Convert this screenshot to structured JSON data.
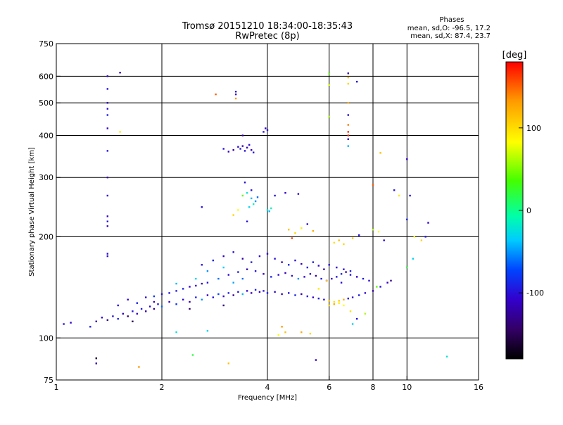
{
  "chart_data": {
    "type": "scatter",
    "title": "Tromsø 20151210 18:34:00-18:35:43",
    "subtitle": "RwPretec (8p)",
    "stats": {
      "heading": "Phases",
      "line_o": "mean, sd,O: -96.5, 17.2",
      "line_x": "mean, sd,X: 87.4, 23.7"
    },
    "xlabel": "Frequency [MHz]",
    "ylabel": "Stationary phase Virtual Height [km]",
    "x_scale": "log",
    "y_scale": "log",
    "xlim": [
      1,
      16
    ],
    "ylim": [
      75,
      750
    ],
    "x_ticks": [
      1,
      2,
      4,
      6,
      8,
      10,
      16
    ],
    "x_tick_labels": [
      "1",
      "2",
      "4",
      "6",
      "8",
      "10",
      "16"
    ],
    "y_ticks": [
      75,
      100,
      200,
      300,
      400,
      500,
      600,
      750
    ],
    "y_tick_labels": [
      "75",
      "100",
      "200",
      "300",
      "400",
      "500",
      "600",
      "750"
    ],
    "grid_x": [
      2,
      4,
      6,
      8,
      10
    ],
    "grid_y": [
      100,
      200,
      300,
      400,
      500,
      600
    ],
    "grid": true,
    "colorbar": {
      "label": "[deg]",
      "range": [
        -180,
        180
      ],
      "ticks": [
        100,
        0,
        -100
      ],
      "tick_labels": [
        "100",
        "0",
        "-100"
      ]
    },
    "points": [
      {
        "f": 1.05,
        "h": 110,
        "p": -100
      },
      {
        "f": 1.1,
        "h": 111,
        "p": -110
      },
      {
        "f": 1.25,
        "h": 108,
        "p": -95
      },
      {
        "f": 1.3,
        "h": 112,
        "p": -120
      },
      {
        "f": 1.35,
        "h": 115,
        "p": -105
      },
      {
        "f": 1.4,
        "h": 113,
        "p": -130
      },
      {
        "f": 1.45,
        "h": 116,
        "p": -100
      },
      {
        "f": 1.5,
        "h": 114,
        "p": -90
      },
      {
        "f": 1.55,
        "h": 118,
        "p": -115
      },
      {
        "f": 1.6,
        "h": 116,
        "p": -140
      },
      {
        "f": 1.65,
        "h": 120,
        "p": -100
      },
      {
        "f": 1.7,
        "h": 118,
        "p": -110
      },
      {
        "f": 1.75,
        "h": 122,
        "p": -95
      },
      {
        "f": 1.8,
        "h": 120,
        "p": -120
      },
      {
        "f": 1.85,
        "h": 124,
        "p": -105
      },
      {
        "f": 1.9,
        "h": 122,
        "p": -130
      },
      {
        "f": 1.95,
        "h": 126,
        "p": -100
      },
      {
        "f": 2.0,
        "h": 124,
        "p": -60
      },
      {
        "f": 2.1,
        "h": 128,
        "p": -110
      },
      {
        "f": 2.2,
        "h": 126,
        "p": -80
      },
      {
        "f": 2.3,
        "h": 130,
        "p": -105
      },
      {
        "f": 2.4,
        "h": 128,
        "p": -120
      },
      {
        "f": 2.5,
        "h": 132,
        "p": -90
      },
      {
        "f": 2.6,
        "h": 130,
        "p": -50
      },
      {
        "f": 2.7,
        "h": 134,
        "p": -115
      },
      {
        "f": 2.8,
        "h": 132,
        "p": -100
      },
      {
        "f": 2.9,
        "h": 135,
        "p": -70
      },
      {
        "f": 3.0,
        "h": 133,
        "p": -110
      },
      {
        "f": 3.1,
        "h": 136,
        "p": -95
      },
      {
        "f": 3.2,
        "h": 134,
        "p": -130
      },
      {
        "f": 3.3,
        "h": 137,
        "p": -100
      },
      {
        "f": 3.4,
        "h": 135,
        "p": -40
      },
      {
        "f": 3.5,
        "h": 138,
        "p": -105
      },
      {
        "f": 3.6,
        "h": 136,
        "p": -120
      },
      {
        "f": 3.7,
        "h": 139,
        "p": -90
      },
      {
        "f": 3.8,
        "h": 137,
        "p": -110
      },
      {
        "f": 3.9,
        "h": 138,
        "p": -100
      },
      {
        "f": 4.0,
        "h": 136,
        "p": -95
      },
      {
        "f": 4.2,
        "h": 137,
        "p": -105
      },
      {
        "f": 4.4,
        "h": 135,
        "p": -115
      },
      {
        "f": 4.6,
        "h": 136,
        "p": -100
      },
      {
        "f": 4.8,
        "h": 134,
        "p": -90
      },
      {
        "f": 5.0,
        "h": 135,
        "p": -120
      },
      {
        "f": 5.2,
        "h": 133,
        "p": -100
      },
      {
        "f": 5.4,
        "h": 132,
        "p": -110
      },
      {
        "f": 5.6,
        "h": 131,
        "p": -95
      },
      {
        "f": 5.8,
        "h": 130,
        "p": -105
      },
      {
        "f": 6.0,
        "h": 129,
        "p": 110
      },
      {
        "f": 6.2,
        "h": 128,
        "p": 95
      },
      {
        "f": 6.4,
        "h": 129,
        "p": 105
      },
      {
        "f": 6.6,
        "h": 130,
        "p": 120
      },
      {
        "f": 6.8,
        "h": 131,
        "p": -100
      },
      {
        "f": 7.0,
        "h": 132,
        "p": -110
      },
      {
        "f": 7.3,
        "h": 134,
        "p": -95
      },
      {
        "f": 7.6,
        "h": 136,
        "p": -105
      },
      {
        "f": 8.0,
        "h": 138,
        "p": -120
      },
      {
        "f": 8.4,
        "h": 142,
        "p": -100
      },
      {
        "f": 8.8,
        "h": 146,
        "p": -110
      },
      {
        "f": 9.0,
        "h": 148,
        "p": -130
      },
      {
        "f": 1.9,
        "h": 133,
        "p": -80
      },
      {
        "f": 2.1,
        "h": 136,
        "p": -100
      },
      {
        "f": 2.3,
        "h": 140,
        "p": -90
      },
      {
        "f": 2.5,
        "h": 143,
        "p": -110
      },
      {
        "f": 2.7,
        "h": 146,
        "p": -100
      },
      {
        "f": 2.9,
        "h": 150,
        "p": -60
      },
      {
        "f": 3.1,
        "h": 154,
        "p": -105
      },
      {
        "f": 3.3,
        "h": 157,
        "p": -95
      },
      {
        "f": 3.5,
        "h": 160,
        "p": -120
      },
      {
        "f": 3.7,
        "h": 158,
        "p": -100
      },
      {
        "f": 3.9,
        "h": 155,
        "p": -110
      },
      {
        "f": 4.1,
        "h": 152,
        "p": -90
      },
      {
        "f": 4.3,
        "h": 154,
        "p": -105
      },
      {
        "f": 4.5,
        "h": 156,
        "p": -115
      },
      {
        "f": 4.7,
        "h": 153,
        "p": -100
      },
      {
        "f": 4.9,
        "h": 150,
        "p": -50
      },
      {
        "f": 5.1,
        "h": 152,
        "p": -110
      },
      {
        "f": 5.3,
        "h": 155,
        "p": -100
      },
      {
        "f": 5.5,
        "h": 153,
        "p": -120
      },
      {
        "f": 5.7,
        "h": 150,
        "p": -95
      },
      {
        "f": 5.9,
        "h": 148,
        "p": -105
      },
      {
        "f": 6.1,
        "h": 150,
        "p": -110
      },
      {
        "f": 6.3,
        "h": 152,
        "p": -100
      },
      {
        "f": 6.5,
        "h": 155,
        "p": -90
      },
      {
        "f": 6.7,
        "h": 157,
        "p": -115
      },
      {
        "f": 6.9,
        "h": 154,
        "p": -100
      },
      {
        "f": 7.2,
        "h": 152,
        "p": -110
      },
      {
        "f": 7.5,
        "h": 150,
        "p": -95
      },
      {
        "f": 7.8,
        "h": 148,
        "p": -105
      },
      {
        "f": 2.6,
        "h": 165,
        "p": -100
      },
      {
        "f": 2.8,
        "h": 170,
        "p": -90
      },
      {
        "f": 3.0,
        "h": 175,
        "p": -110
      },
      {
        "f": 3.2,
        "h": 180,
        "p": -100
      },
      {
        "f": 3.4,
        "h": 172,
        "p": -120
      },
      {
        "f": 3.6,
        "h": 168,
        "p": -95
      },
      {
        "f": 3.8,
        "h": 175,
        "p": -105
      },
      {
        "f": 4.0,
        "h": 178,
        "p": -110
      },
      {
        "f": 4.2,
        "h": 172,
        "p": -100
      },
      {
        "f": 4.4,
        "h": 168,
        "p": -115
      },
      {
        "f": 4.6,
        "h": 165,
        "p": -90
      },
      {
        "f": 4.8,
        "h": 170,
        "p": -100
      },
      {
        "f": 5.0,
        "h": 166,
        "p": -110
      },
      {
        "f": 5.2,
        "h": 162,
        "p": -100
      },
      {
        "f": 5.4,
        "h": 168,
        "p": -95
      },
      {
        "f": 5.6,
        "h": 164,
        "p": -105
      },
      {
        "f": 5.8,
        "h": 160,
        "p": -120
      },
      {
        "f": 6.0,
        "h": 165,
        "p": -100
      },
      {
        "f": 6.3,
        "h": 162,
        "p": -110
      },
      {
        "f": 6.6,
        "h": 160,
        "p": -100
      },
      {
        "f": 6.9,
        "h": 158,
        "p": -95
      },
      {
        "f": 1.5,
        "h": 125,
        "p": -100
      },
      {
        "f": 1.6,
        "h": 130,
        "p": -110
      },
      {
        "f": 1.7,
        "h": 127,
        "p": -90
      },
      {
        "f": 1.8,
        "h": 132,
        "p": -105
      },
      {
        "f": 1.9,
        "h": 128,
        "p": -115
      },
      {
        "f": 2.0,
        "h": 135,
        "p": -100
      },
      {
        "f": 2.2,
        "h": 138,
        "p": -95
      },
      {
        "f": 2.4,
        "h": 142,
        "p": -110
      },
      {
        "f": 2.6,
        "h": 145,
        "p": -120
      },
      {
        "f": 2.2,
        "h": 145,
        "p": -40
      },
      {
        "f": 2.5,
        "h": 150,
        "p": -30
      },
      {
        "f": 2.7,
        "h": 158,
        "p": -50
      },
      {
        "f": 3.0,
        "h": 162,
        "p": -35
      },
      {
        "f": 3.2,
        "h": 146,
        "p": -45
      },
      {
        "f": 3.4,
        "h": 150,
        "p": -60
      },
      {
        "f": 1.4,
        "h": 600,
        "p": -110
      },
      {
        "f": 1.4,
        "h": 550,
        "p": -100
      },
      {
        "f": 1.4,
        "h": 500,
        "p": -120
      },
      {
        "f": 1.4,
        "h": 480,
        "p": -105
      },
      {
        "f": 1.4,
        "h": 460,
        "p": -95
      },
      {
        "f": 1.4,
        "h": 420,
        "p": -110
      },
      {
        "f": 1.4,
        "h": 360,
        "p": -100
      },
      {
        "f": 1.4,
        "h": 300,
        "p": -120
      },
      {
        "f": 1.4,
        "h": 265,
        "p": -105
      },
      {
        "f": 1.4,
        "h": 230,
        "p": -110
      },
      {
        "f": 1.4,
        "h": 222,
        "p": -100
      },
      {
        "f": 1.4,
        "h": 215,
        "p": -115
      },
      {
        "f": 1.4,
        "h": 178,
        "p": -100
      },
      {
        "f": 1.4,
        "h": 175,
        "p": -110
      },
      {
        "f": 1.52,
        "h": 615,
        "p": -120
      },
      {
        "f": 1.52,
        "h": 410,
        "p": 90
      },
      {
        "f": 2.85,
        "h": 530,
        "p": 150
      },
      {
        "f": 3.25,
        "h": 540,
        "p": -100
      },
      {
        "f": 3.25,
        "h": 530,
        "p": -110
      },
      {
        "f": 3.25,
        "h": 515,
        "p": 130
      },
      {
        "f": 3.0,
        "h": 365,
        "p": -100
      },
      {
        "f": 3.1,
        "h": 358,
        "p": -110
      },
      {
        "f": 3.2,
        "h": 362,
        "p": -120
      },
      {
        "f": 3.3,
        "h": 370,
        "p": -105
      },
      {
        "f": 3.35,
        "h": 365,
        "p": -95
      },
      {
        "f": 3.4,
        "h": 372,
        "p": -110
      },
      {
        "f": 3.45,
        "h": 360,
        "p": -100
      },
      {
        "f": 3.5,
        "h": 368,
        "p": -120
      },
      {
        "f": 3.55,
        "h": 375,
        "p": -105
      },
      {
        "f": 3.6,
        "h": 362,
        "p": -110
      },
      {
        "f": 3.65,
        "h": 356,
        "p": -100
      },
      {
        "f": 3.4,
        "h": 400,
        "p": -120
      },
      {
        "f": 3.9,
        "h": 410,
        "p": -100
      },
      {
        "f": 3.95,
        "h": 420,
        "p": -110
      },
      {
        "f": 4.0,
        "h": 415,
        "p": -105
      },
      {
        "f": 3.45,
        "h": 290,
        "p": -100
      },
      {
        "f": 3.5,
        "h": 270,
        "p": -20
      },
      {
        "f": 3.6,
        "h": 260,
        "p": -40
      },
      {
        "f": 3.65,
        "h": 250,
        "p": -10
      },
      {
        "f": 3.7,
        "h": 255,
        "p": -50
      },
      {
        "f": 3.55,
        "h": 245,
        "p": -30
      },
      {
        "f": 3.6,
        "h": 275,
        "p": -100
      },
      {
        "f": 3.4,
        "h": 265,
        "p": 40
      },
      {
        "f": 3.75,
        "h": 262,
        "p": -60
      },
      {
        "f": 3.3,
        "h": 240,
        "p": 80
      },
      {
        "f": 3.2,
        "h": 232,
        "p": 100
      },
      {
        "f": 3.5,
        "h": 222,
        "p": -100
      },
      {
        "f": 4.0,
        "h": 240,
        "p": -20
      },
      {
        "f": 4.05,
        "h": 238,
        "p": -40
      },
      {
        "f": 4.1,
        "h": 243,
        "p": -10
      },
      {
        "f": 4.2,
        "h": 265,
        "p": -100
      },
      {
        "f": 4.5,
        "h": 270,
        "p": -110
      },
      {
        "f": 4.9,
        "h": 268,
        "p": -105
      },
      {
        "f": 4.6,
        "h": 210,
        "p": 110
      },
      {
        "f": 4.8,
        "h": 205,
        "p": 100
      },
      {
        "f": 5.0,
        "h": 212,
        "p": 90
      },
      {
        "f": 4.7,
        "h": 198,
        "p": 160
      },
      {
        "f": 5.2,
        "h": 218,
        "p": -100
      },
      {
        "f": 5.4,
        "h": 208,
        "p": 120
      },
      {
        "f": 6.0,
        "h": 610,
        "p": 40
      },
      {
        "f": 6.0,
        "h": 565,
        "p": 70
      },
      {
        "f": 6.0,
        "h": 455,
        "p": 60
      },
      {
        "f": 6.8,
        "h": 612,
        "p": -120
      },
      {
        "f": 6.8,
        "h": 595,
        "p": 110
      },
      {
        "f": 6.8,
        "h": 570,
        "p": 100
      },
      {
        "f": 6.8,
        "h": 500,
        "p": 120
      },
      {
        "f": 6.8,
        "h": 460,
        "p": -100
      },
      {
        "f": 6.8,
        "h": 430,
        "p": 140
      },
      {
        "f": 6.8,
        "h": 410,
        "p": 165
      },
      {
        "f": 6.8,
        "h": 400,
        "p": 170
      },
      {
        "f": 6.8,
        "h": 390,
        "p": -110
      },
      {
        "f": 6.8,
        "h": 372,
        "p": -40
      },
      {
        "f": 7.2,
        "h": 578,
        "p": -100
      },
      {
        "f": 6.2,
        "h": 192,
        "p": 95
      },
      {
        "f": 6.4,
        "h": 195,
        "p": 110
      },
      {
        "f": 6.6,
        "h": 190,
        "p": 100
      },
      {
        "f": 7.0,
        "h": 198,
        "p": 105
      },
      {
        "f": 7.3,
        "h": 202,
        "p": -100
      },
      {
        "f": 8.0,
        "h": 210,
        "p": 60
      },
      {
        "f": 8.3,
        "h": 207,
        "p": 80
      },
      {
        "f": 8.6,
        "h": 195,
        "p": -110
      },
      {
        "f": 8.0,
        "h": 285,
        "p": 150
      },
      {
        "f": 8.4,
        "h": 355,
        "p": 110
      },
      {
        "f": 9.2,
        "h": 275,
        "p": -100
      },
      {
        "f": 9.5,
        "h": 265,
        "p": 90
      },
      {
        "f": 10.0,
        "h": 340,
        "p": -110
      },
      {
        "f": 10.2,
        "h": 265,
        "p": -100
      },
      {
        "f": 10.0,
        "h": 225,
        "p": -90
      },
      {
        "f": 10.5,
        "h": 200,
        "p": 80
      },
      {
        "f": 11.0,
        "h": 195,
        "p": 100
      },
      {
        "f": 11.3,
        "h": 200,
        "p": -100
      },
      {
        "f": 10.4,
        "h": 172,
        "p": -30
      },
      {
        "f": 11.5,
        "h": 220,
        "p": -110
      },
      {
        "f": 10.0,
        "h": 162,
        "p": 20
      },
      {
        "f": 6.0,
        "h": 125,
        "p": 100
      },
      {
        "f": 6.2,
        "h": 126,
        "p": 120
      },
      {
        "f": 6.4,
        "h": 127,
        "p": 90
      },
      {
        "f": 6.6,
        "h": 125,
        "p": 80
      },
      {
        "f": 6.9,
        "h": 120,
        "p": 95
      },
      {
        "f": 7.2,
        "h": 114,
        "p": -100
      },
      {
        "f": 5.0,
        "h": 104,
        "p": 120
      },
      {
        "f": 5.3,
        "h": 103,
        "p": 100
      },
      {
        "f": 4.5,
        "h": 104,
        "p": 110
      },
      {
        "f": 7.0,
        "h": 110,
        "p": -30
      },
      {
        "f": 7.6,
        "h": 118,
        "p": 60
      },
      {
        "f": 8.2,
        "h": 142,
        "p": 40
      },
      {
        "f": 5.9,
        "h": 148,
        "p": 110
      },
      {
        "f": 5.6,
        "h": 140,
        "p": 90
      },
      {
        "f": 6.5,
        "h": 146,
        "p": -100
      },
      {
        "f": 1.3,
        "h": 87,
        "p": -160
      },
      {
        "f": 1.3,
        "h": 84,
        "p": -120
      },
      {
        "f": 1.72,
        "h": 82,
        "p": 130
      },
      {
        "f": 2.45,
        "h": 89,
        "p": 20
      },
      {
        "f": 3.1,
        "h": 84,
        "p": 110
      },
      {
        "f": 5.5,
        "h": 86,
        "p": -110
      },
      {
        "f": 13.0,
        "h": 88,
        "p": -20
      },
      {
        "f": 2.2,
        "h": 104,
        "p": -20
      },
      {
        "f": 2.7,
        "h": 105,
        "p": -30
      },
      {
        "f": 4.3,
        "h": 102,
        "p": 80
      },
      {
        "f": 4.4,
        "h": 108,
        "p": 130
      },
      {
        "f": 2.6,
        "h": 245,
        "p": -100
      },
      {
        "f": 1.65,
        "h": 112,
        "p": -150
      },
      {
        "f": 2.4,
        "h": 122,
        "p": -140
      },
      {
        "f": 3.0,
        "h": 125,
        "p": -135
      }
    ]
  }
}
